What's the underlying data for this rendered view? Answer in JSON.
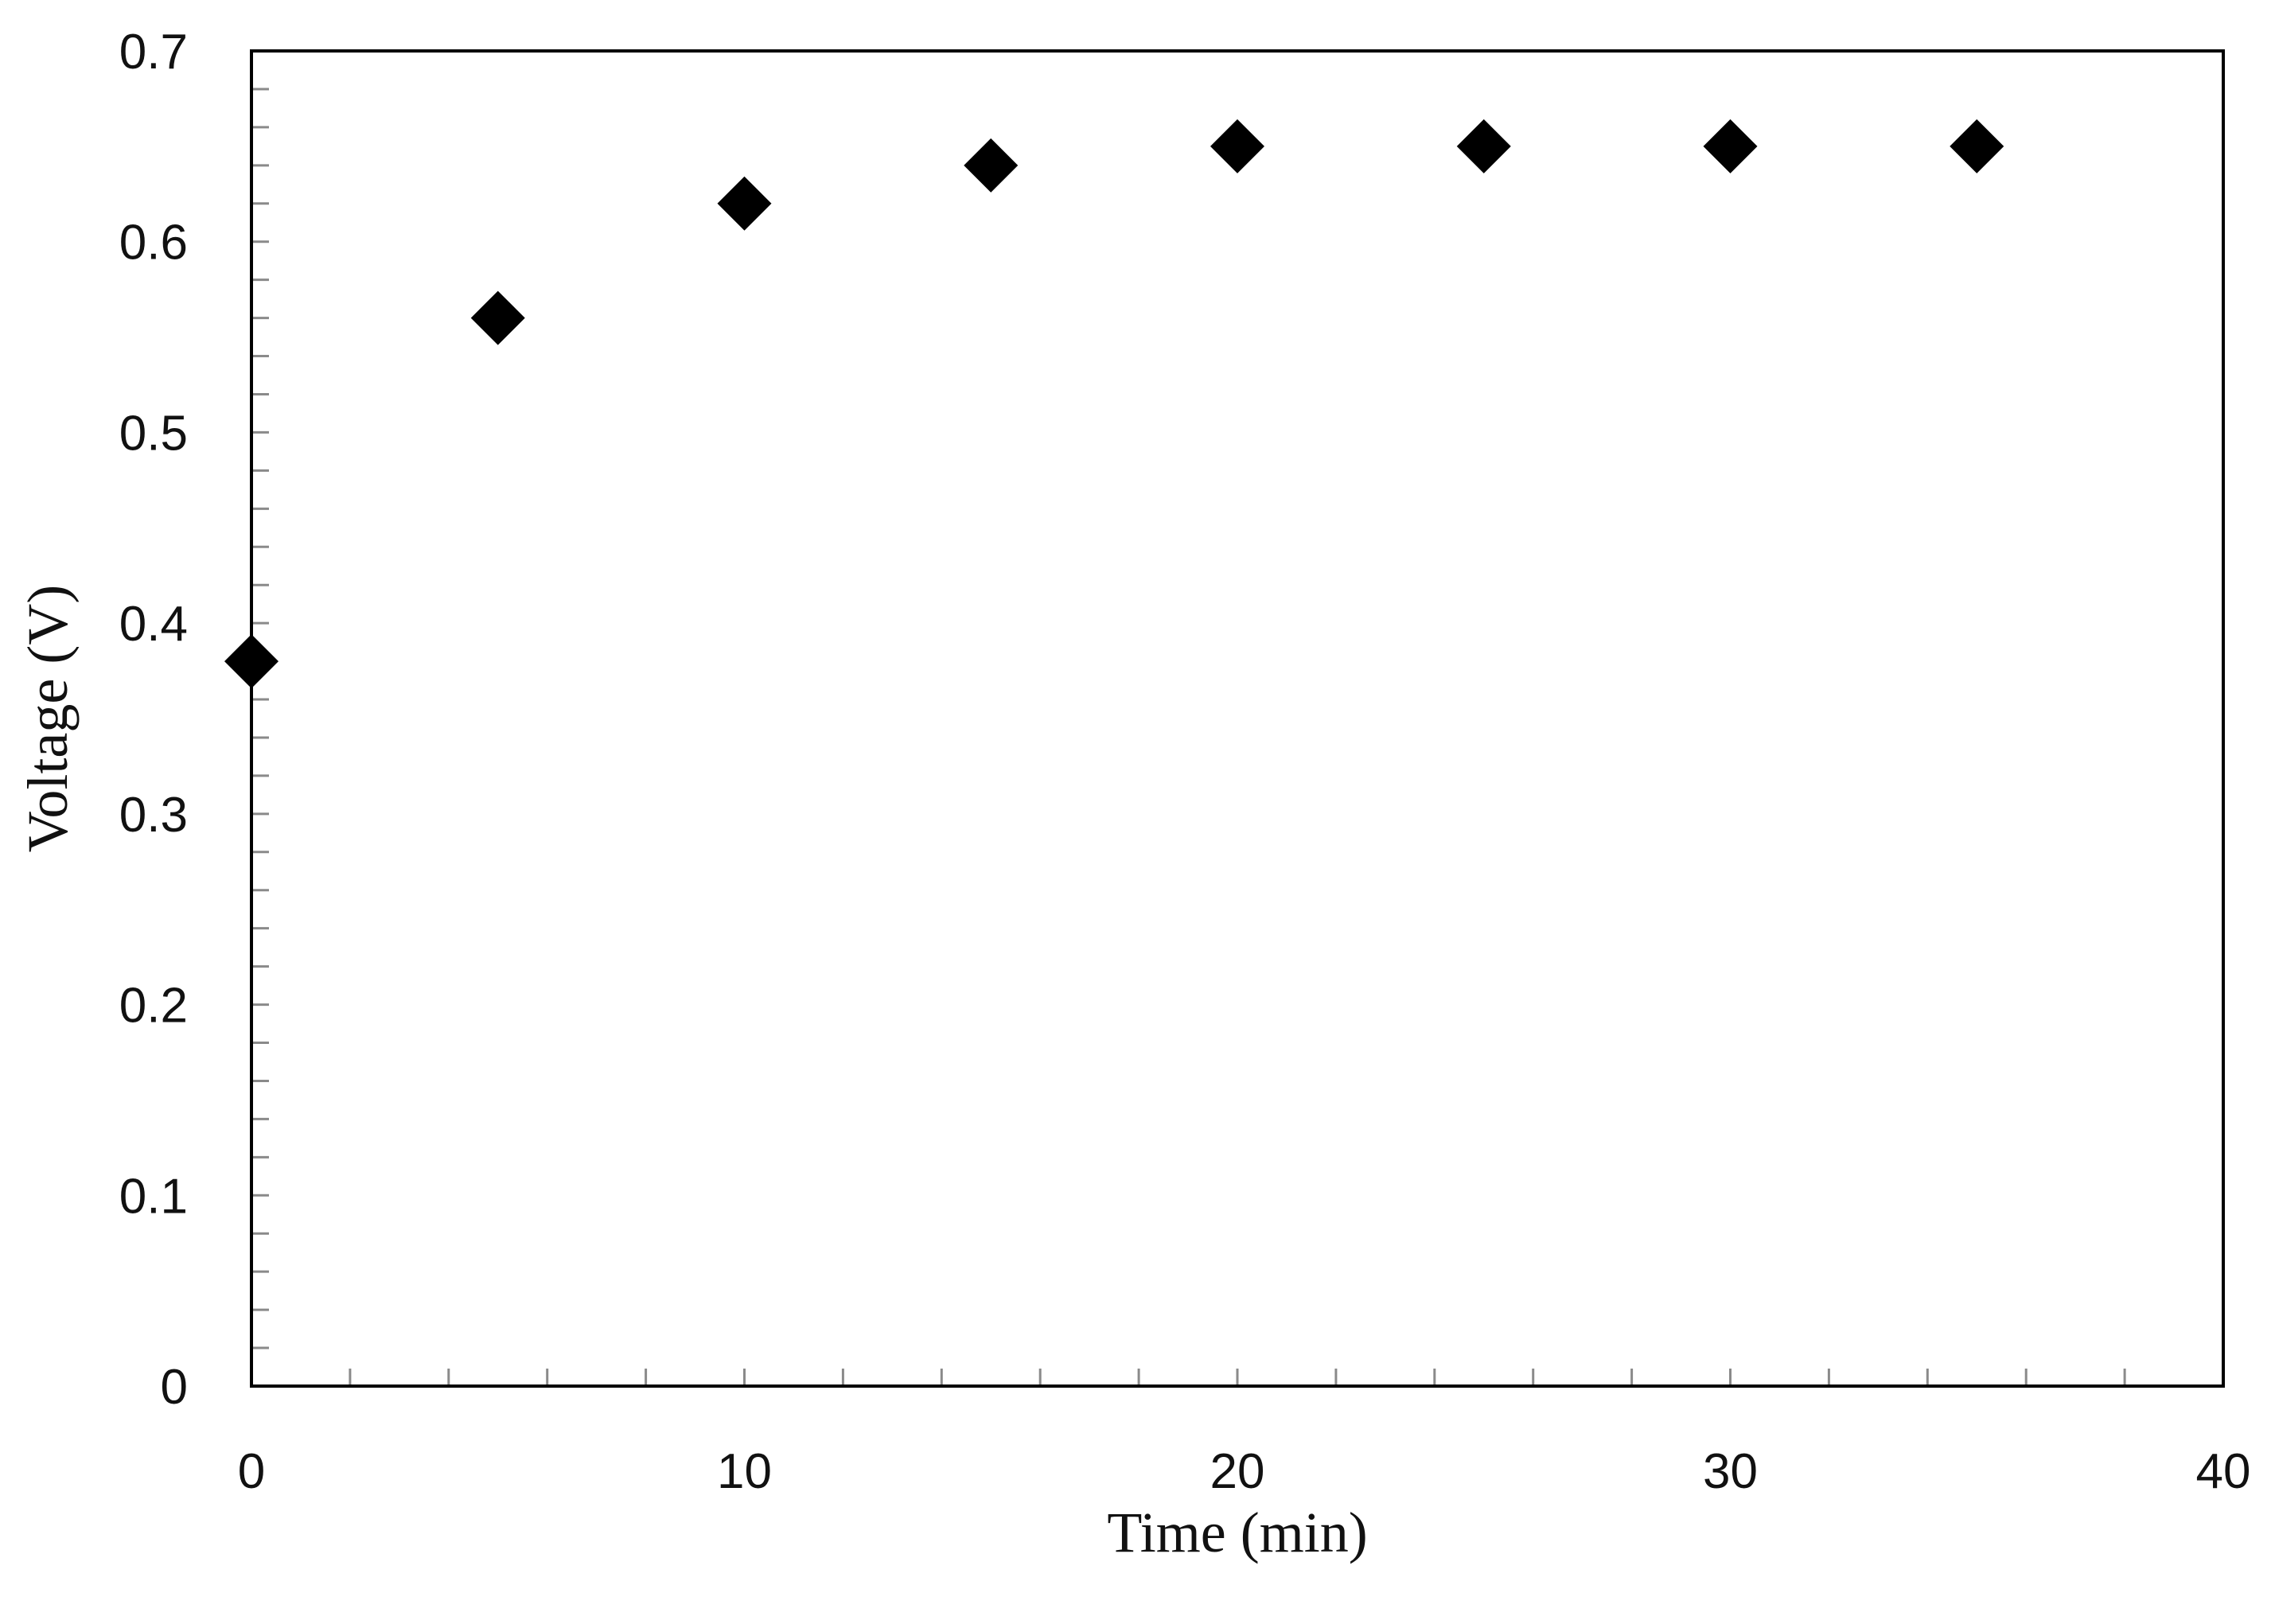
{
  "chart_data": {
    "type": "scatter",
    "title": "",
    "xlabel": "Time (min)",
    "ylabel": "Voltage  (V)",
    "xlim": [
      0,
      40
    ],
    "ylim": [
      0,
      0.7
    ],
    "xticks": [
      0,
      10,
      20,
      30,
      40
    ],
    "xtick_labels": [
      "0",
      "10",
      "20",
      "30",
      "40"
    ],
    "yticks": [
      0,
      0.1,
      0.2,
      0.3,
      0.4,
      0.5,
      0.6,
      0.7
    ],
    "ytick_labels": [
      "0",
      "0.1",
      "0.2",
      "0.3",
      "0.4",
      "0.5",
      "0.6",
      "0.7"
    ],
    "x_minor_step": 2,
    "y_minor_step": 0.02,
    "grid": false,
    "legend": "none",
    "marker": "diamond",
    "marker_color": "#000000",
    "series": [
      {
        "x": [
          0,
          5,
          10,
          15,
          20,
          25,
          30,
          35
        ],
        "y": [
          0.38,
          0.56,
          0.62,
          0.64,
          0.65,
          0.65,
          0.65,
          0.65
        ]
      }
    ]
  }
}
